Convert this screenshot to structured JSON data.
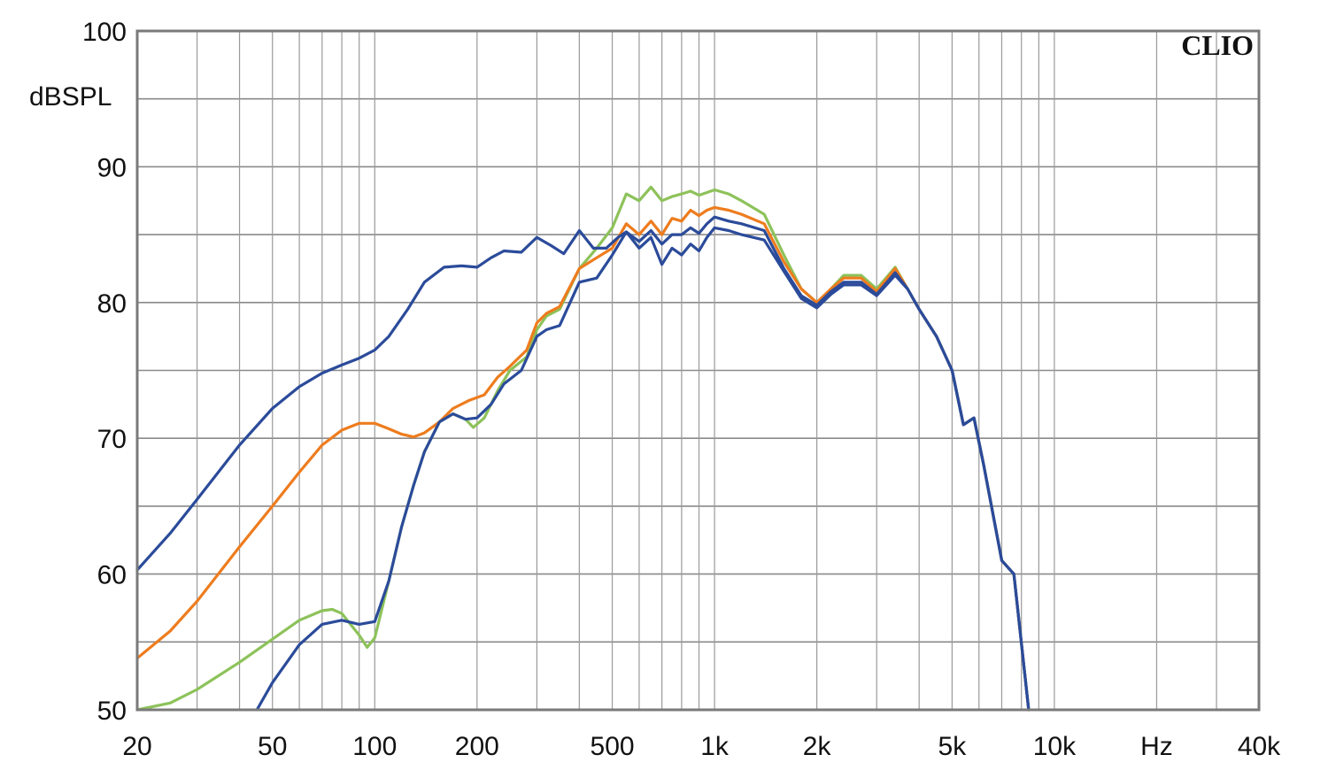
{
  "chart_data": {
    "type": "line",
    "brand": "CLIO",
    "ylabel": "dBSPL",
    "xunit": "Hz",
    "xscale": "log",
    "xlim": [
      20,
      40000
    ],
    "ylim": [
      50,
      100
    ],
    "grid": true,
    "y_ticks": [
      {
        "value": 50,
        "label": "50"
      },
      {
        "value": 60,
        "label": "60"
      },
      {
        "value": 70,
        "label": "70"
      },
      {
        "value": 80,
        "label": "80"
      },
      {
        "value": 90,
        "label": "90"
      },
      {
        "value": 100,
        "label": "100"
      }
    ],
    "x_ticks": [
      {
        "value": 20,
        "label": "20"
      },
      {
        "value": 50,
        "label": "50"
      },
      {
        "value": 100,
        "label": "100"
      },
      {
        "value": 200,
        "label": "200"
      },
      {
        "value": 500,
        "label": "500"
      },
      {
        "value": 1000,
        "label": "1k"
      },
      {
        "value": 2000,
        "label": "2k"
      },
      {
        "value": 5000,
        "label": "5k"
      },
      {
        "value": 10000,
        "label": "10k"
      },
      {
        "value": 20000,
        "label": "Hz"
      },
      {
        "value": 40000,
        "label": "40k"
      }
    ],
    "series": [
      {
        "color": "#8dc25a",
        "points": [
          [
            20,
            50
          ],
          [
            25,
            50.5
          ],
          [
            30,
            51.5
          ],
          [
            40,
            53.5
          ],
          [
            50,
            55.2
          ],
          [
            60,
            56.6
          ],
          [
            70,
            57.3
          ],
          [
            75,
            57.4
          ],
          [
            80,
            57.1
          ],
          [
            90,
            55.5
          ],
          [
            95,
            54.6
          ],
          [
            100,
            55.3
          ],
          [
            110,
            59.5
          ],
          [
            120,
            63.5
          ],
          [
            130,
            66.5
          ],
          [
            140,
            69
          ],
          [
            155,
            71.2
          ],
          [
            170,
            71.8
          ],
          [
            185,
            71.4
          ],
          [
            195,
            70.8
          ],
          [
            210,
            71.5
          ],
          [
            230,
            73.5
          ],
          [
            250,
            75
          ],
          [
            280,
            76
          ],
          [
            300,
            78
          ],
          [
            320,
            79
          ],
          [
            350,
            79.5
          ],
          [
            400,
            82.5
          ],
          [
            450,
            84
          ],
          [
            500,
            85.5
          ],
          [
            550,
            88
          ],
          [
            600,
            87.5
          ],
          [
            650,
            88.5
          ],
          [
            700,
            87.5
          ],
          [
            750,
            87.8
          ],
          [
            800,
            88
          ],
          [
            850,
            88.2
          ],
          [
            900,
            87.9
          ],
          [
            950,
            88.1
          ],
          [
            1000,
            88.3
          ],
          [
            1100,
            88
          ],
          [
            1200,
            87.5
          ],
          [
            1400,
            86.5
          ],
          [
            1600,
            83.5
          ],
          [
            1800,
            81
          ],
          [
            2000,
            80
          ],
          [
            2200,
            81
          ],
          [
            2400,
            82
          ],
          [
            2700,
            82
          ],
          [
            3000,
            81
          ],
          [
            3400,
            82.6
          ],
          [
            3700,
            81
          ],
          [
            4000,
            79.5
          ],
          [
            4500,
            77.5
          ],
          [
            5000,
            75
          ],
          [
            5400,
            71
          ],
          [
            5800,
            71.5
          ],
          [
            6200,
            68
          ],
          [
            7000,
            61
          ],
          [
            7600,
            60
          ],
          [
            8400,
            50
          ]
        ]
      },
      {
        "color": "#ee7c1e",
        "points": [
          [
            20,
            53.8
          ],
          [
            25,
            55.8
          ],
          [
            30,
            58
          ],
          [
            40,
            62
          ],
          [
            50,
            65
          ],
          [
            60,
            67.5
          ],
          [
            70,
            69.5
          ],
          [
            80,
            70.6
          ],
          [
            90,
            71.1
          ],
          [
            100,
            71.1
          ],
          [
            110,
            70.7
          ],
          [
            120,
            70.3
          ],
          [
            130,
            70.1
          ],
          [
            140,
            70.4
          ],
          [
            155,
            71.2
          ],
          [
            170,
            72.2
          ],
          [
            190,
            72.8
          ],
          [
            210,
            73.2
          ],
          [
            230,
            74.5
          ],
          [
            250,
            75.3
          ],
          [
            280,
            76.5
          ],
          [
            300,
            78.5
          ],
          [
            320,
            79.2
          ],
          [
            350,
            79.7
          ],
          [
            400,
            82.5
          ],
          [
            450,
            83.3
          ],
          [
            500,
            84
          ],
          [
            550,
            85.8
          ],
          [
            600,
            85
          ],
          [
            650,
            86
          ],
          [
            700,
            85
          ],
          [
            750,
            86.2
          ],
          [
            800,
            86
          ],
          [
            850,
            86.8
          ],
          [
            900,
            86.4
          ],
          [
            950,
            86.8
          ],
          [
            1000,
            87
          ],
          [
            1100,
            86.8
          ],
          [
            1200,
            86.5
          ],
          [
            1400,
            85.8
          ],
          [
            1600,
            83
          ],
          [
            1800,
            81
          ],
          [
            2000,
            80
          ],
          [
            2200,
            81
          ],
          [
            2400,
            81.8
          ],
          [
            2700,
            81.8
          ],
          [
            3000,
            80.8
          ],
          [
            3400,
            82.5
          ],
          [
            3700,
            81
          ],
          [
            4000,
            79.5
          ],
          [
            4500,
            77.5
          ],
          [
            5000,
            75
          ],
          [
            5400,
            71
          ],
          [
            5800,
            71.5
          ],
          [
            6200,
            68
          ],
          [
            7000,
            61
          ],
          [
            7600,
            60
          ],
          [
            8400,
            50
          ]
        ]
      },
      {
        "color": "#2b4b9a",
        "points": [
          [
            20,
            60.3
          ],
          [
            25,
            63
          ],
          [
            30,
            65.5
          ],
          [
            40,
            69.5
          ],
          [
            50,
            72.2
          ],
          [
            60,
            73.8
          ],
          [
            70,
            74.8
          ],
          [
            80,
            75.4
          ],
          [
            90,
            75.9
          ],
          [
            100,
            76.5
          ],
          [
            110,
            77.5
          ],
          [
            125,
            79.5
          ],
          [
            140,
            81.5
          ],
          [
            160,
            82.6
          ],
          [
            180,
            82.7
          ],
          [
            200,
            82.6
          ],
          [
            220,
            83.3
          ],
          [
            240,
            83.8
          ],
          [
            270,
            83.7
          ],
          [
            300,
            84.8
          ],
          [
            330,
            84.2
          ],
          [
            360,
            83.6
          ],
          [
            400,
            85.3
          ],
          [
            440,
            84
          ],
          [
            480,
            84
          ],
          [
            520,
            84.8
          ],
          [
            550,
            85.2
          ],
          [
            600,
            84.5
          ],
          [
            650,
            85.3
          ],
          [
            700,
            84.3
          ],
          [
            750,
            85
          ],
          [
            800,
            85
          ],
          [
            850,
            85.5
          ],
          [
            900,
            85.1
          ],
          [
            950,
            85.8
          ],
          [
            1000,
            86.3
          ],
          [
            1100,
            86
          ],
          [
            1200,
            85.8
          ],
          [
            1400,
            85.3
          ],
          [
            1600,
            82.5
          ],
          [
            1800,
            80.5
          ],
          [
            2000,
            79.8
          ],
          [
            2200,
            80.8
          ],
          [
            2400,
            81.5
          ],
          [
            2700,
            81.5
          ],
          [
            3000,
            80.6
          ],
          [
            3400,
            82.2
          ],
          [
            3700,
            81
          ],
          [
            4000,
            79.5
          ],
          [
            4500,
            77.5
          ],
          [
            5000,
            75
          ],
          [
            5400,
            71
          ],
          [
            5800,
            71.5
          ],
          [
            6200,
            68
          ],
          [
            7000,
            61
          ],
          [
            7600,
            60
          ],
          [
            8400,
            50
          ]
        ]
      },
      {
        "color": "#2b4b9a",
        "points": [
          [
            45,
            50
          ],
          [
            50,
            52
          ],
          [
            60,
            54.8
          ],
          [
            70,
            56.3
          ],
          [
            80,
            56.6
          ],
          [
            90,
            56.3
          ],
          [
            100,
            56.5
          ],
          [
            110,
            59.5
          ],
          [
            120,
            63.5
          ],
          [
            130,
            66.5
          ],
          [
            140,
            69
          ],
          [
            155,
            71.2
          ],
          [
            170,
            71.8
          ],
          [
            185,
            71.4
          ],
          [
            200,
            71.5
          ],
          [
            220,
            72.5
          ],
          [
            240,
            74
          ],
          [
            270,
            75
          ],
          [
            300,
            77.5
          ],
          [
            320,
            78
          ],
          [
            350,
            78.3
          ],
          [
            400,
            81.5
          ],
          [
            450,
            81.8
          ],
          [
            500,
            83.5
          ],
          [
            550,
            85.2
          ],
          [
            600,
            84
          ],
          [
            650,
            84.8
          ],
          [
            700,
            82.8
          ],
          [
            750,
            84
          ],
          [
            800,
            83.5
          ],
          [
            850,
            84.3
          ],
          [
            900,
            83.8
          ],
          [
            950,
            84.8
          ],
          [
            1000,
            85.5
          ],
          [
            1100,
            85.3
          ],
          [
            1200,
            85
          ],
          [
            1400,
            84.6
          ],
          [
            1600,
            82.3
          ],
          [
            1800,
            80.3
          ],
          [
            2000,
            79.6
          ],
          [
            2200,
            80.6
          ],
          [
            2400,
            81.3
          ],
          [
            2700,
            81.3
          ],
          [
            3000,
            80.5
          ],
          [
            3400,
            82
          ],
          [
            3700,
            81
          ],
          [
            4000,
            79.5
          ],
          [
            4500,
            77.5
          ],
          [
            5000,
            75
          ],
          [
            5400,
            71
          ],
          [
            5800,
            71.5
          ],
          [
            6200,
            68
          ],
          [
            7000,
            61
          ],
          [
            7600,
            60
          ],
          [
            8400,
            50
          ]
        ]
      }
    ]
  }
}
